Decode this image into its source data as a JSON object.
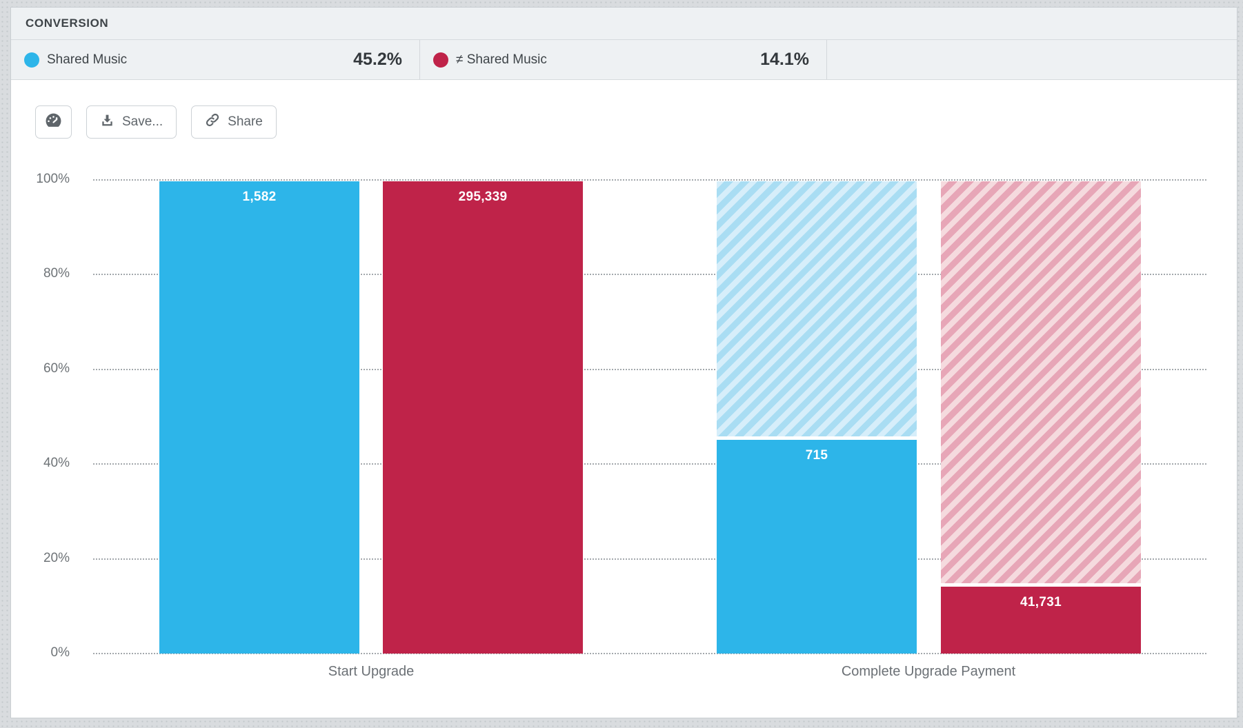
{
  "header": {
    "title": "CONVERSION"
  },
  "legend": {
    "items": [
      {
        "label": "Shared Music",
        "value": "45.2%",
        "color": "#2db5e9"
      },
      {
        "label": "≠ Shared Music",
        "value": "14.1%",
        "color": "#bf2349"
      }
    ]
  },
  "toolbar": {
    "gauge_icon": "gauge-icon",
    "save_icon": "download-icon",
    "share_icon": "link-icon",
    "save_label": "Save...",
    "share_label": "Share"
  },
  "chart_data": {
    "type": "bar",
    "subtype": "funnel-conversion-percent",
    "categories": [
      "Start Upgrade",
      "Complete Upgrade Payment"
    ],
    "series": [
      {
        "name": "Shared Music",
        "color": "#2db5e9",
        "hatch_colors": [
          "#d6eefa",
          "#a9ddf3"
        ],
        "values": [
          1582,
          715
        ],
        "value_labels": [
          "1,582",
          "715"
        ],
        "percent_of_first": [
          100,
          45.2
        ]
      },
      {
        "name": "≠ Shared Music",
        "color": "#bf2349",
        "hatch_colors": [
          "#f5dade",
          "#e7a6b7"
        ],
        "values": [
          295339,
          41731
        ],
        "value_labels": [
          "295,339",
          "41,731"
        ],
        "percent_of_first": [
          100,
          14.1
        ]
      }
    ],
    "yticks": [
      "100%",
      "80%",
      "60%",
      "40%",
      "20%",
      "0%"
    ],
    "ylim": [
      0,
      100
    ],
    "grid": "dotted-horizontal",
    "legend_position": "top"
  }
}
